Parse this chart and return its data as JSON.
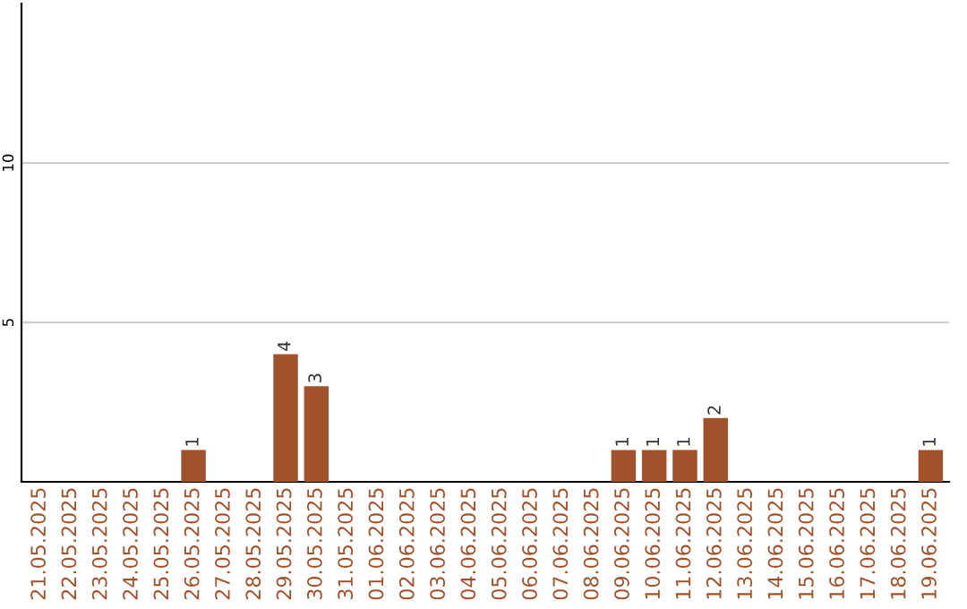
{
  "chart_data": {
    "type": "bar",
    "categories": [
      "21.05.2025",
      "22.05.2025",
      "23.05.2025",
      "24.05.2025",
      "25.05.2025",
      "26.05.2025",
      "27.05.2025",
      "28.05.2025",
      "29.05.2025",
      "30.05.2025",
      "31.05.2025",
      "01.06.2025",
      "02.06.2025",
      "03.06.2025",
      "04.06.2025",
      "05.06.2025",
      "06.06.2025",
      "07.06.2025",
      "08.06.2025",
      "09.06.2025",
      "10.06.2025",
      "11.06.2025",
      "12.06.2025",
      "13.06.2025",
      "14.06.2025",
      "15.06.2025",
      "16.06.2025",
      "17.06.2025",
      "18.06.2025",
      "19.06.2025"
    ],
    "values": [
      0,
      0,
      0,
      0,
      0,
      1,
      0,
      0,
      4,
      3,
      0,
      0,
      0,
      0,
      0,
      0,
      0,
      0,
      0,
      1,
      1,
      1,
      2,
      0,
      0,
      0,
      0,
      0,
      0,
      1
    ],
    "value_labels": [
      null,
      null,
      null,
      null,
      null,
      "1",
      null,
      null,
      "4",
      "3",
      null,
      null,
      null,
      null,
      null,
      null,
      null,
      null,
      null,
      "1",
      "1",
      "1",
      "2",
      null,
      null,
      null,
      null,
      null,
      null,
      "1"
    ],
    "color": "#a0522d",
    "ylim": [
      0,
      15
    ],
    "yticks": [
      5,
      10
    ],
    "grid": "y"
  }
}
